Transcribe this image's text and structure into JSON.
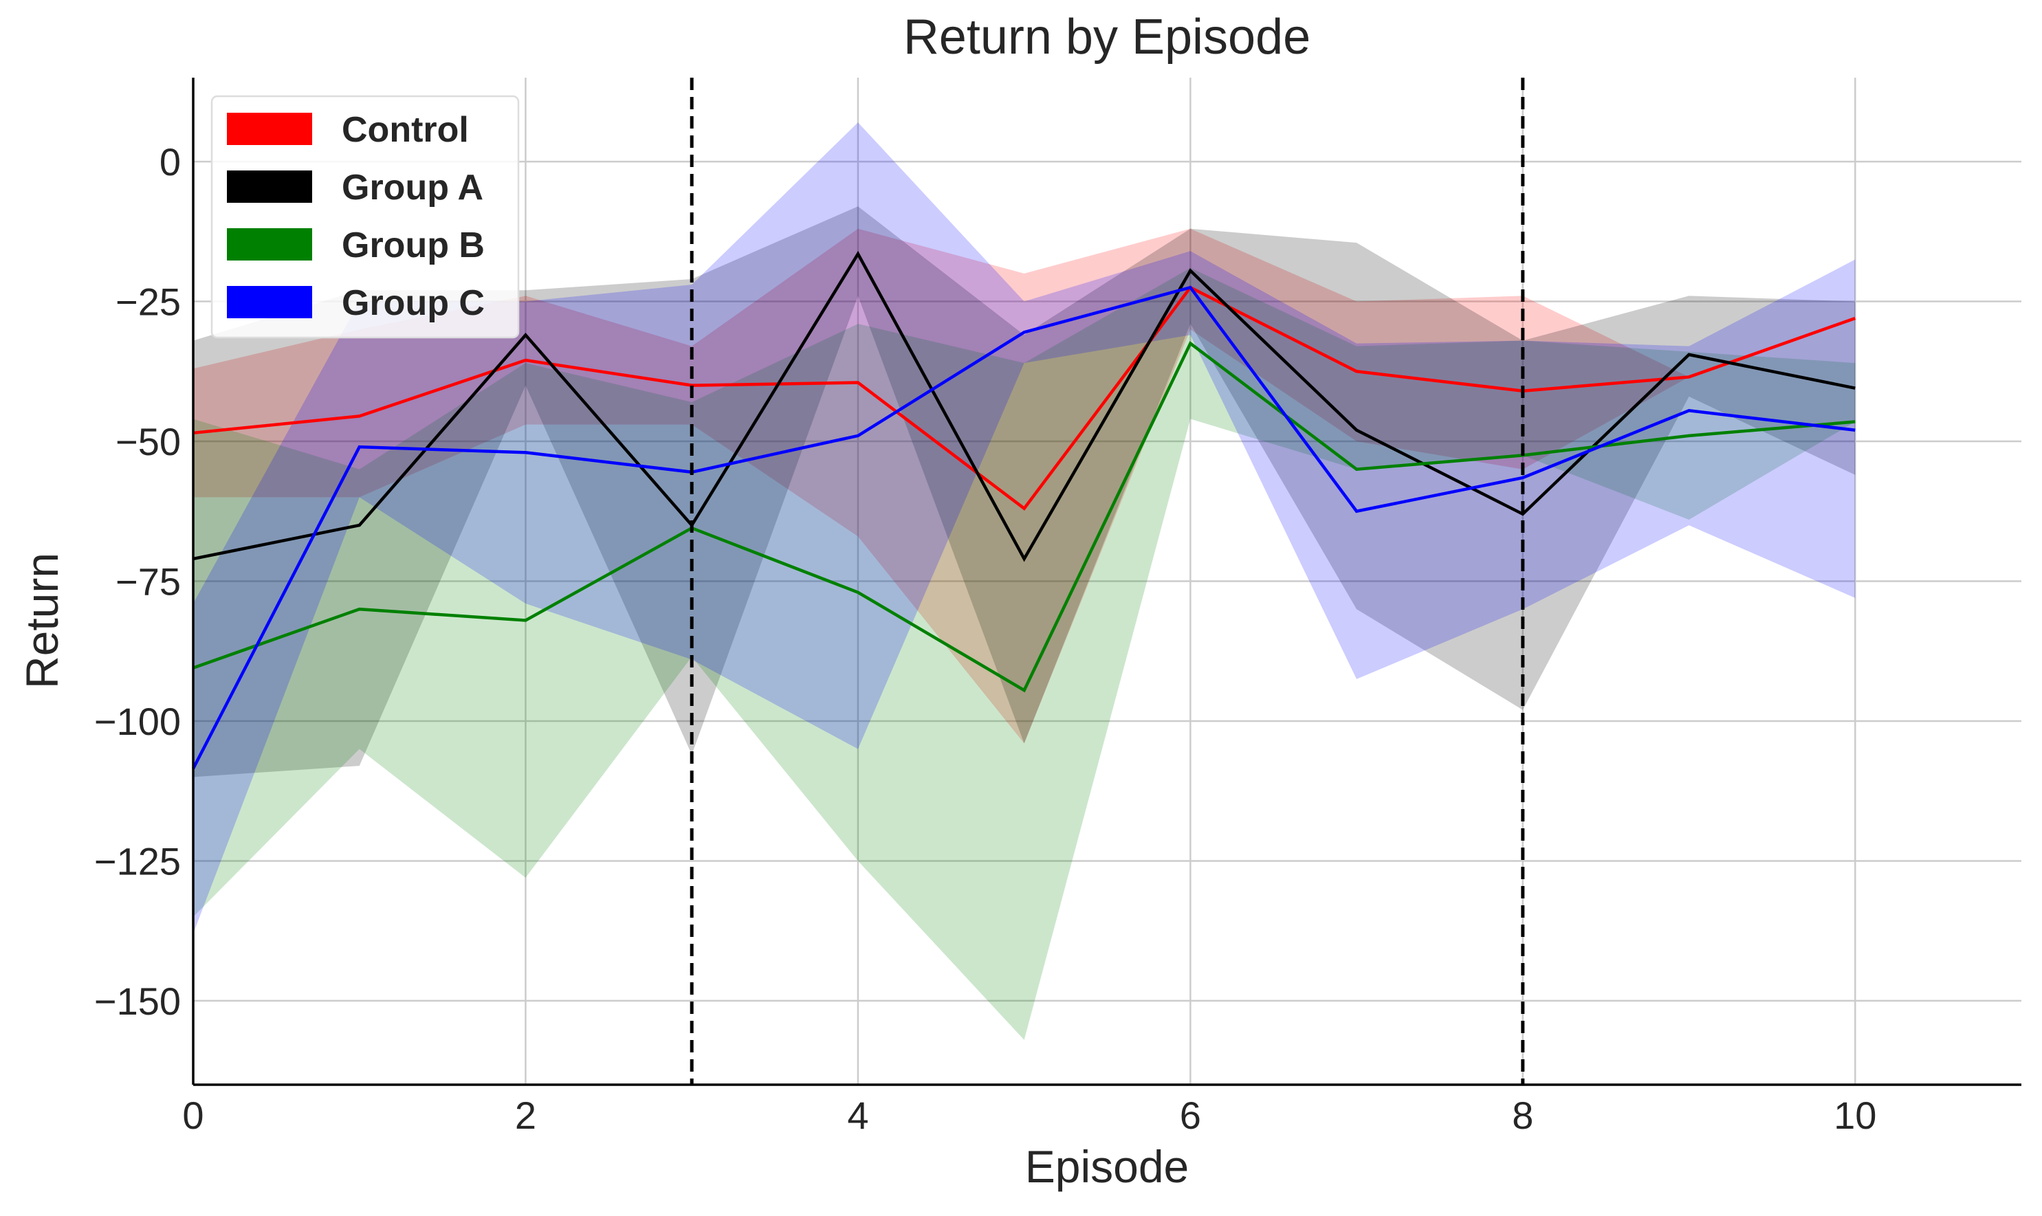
{
  "chart_data": {
    "type": "line",
    "title": "Return by Episode",
    "xlabel": "Episode",
    "ylabel": "Return",
    "xlim": [
      0,
      11
    ],
    "ylim": [
      -165,
      15
    ],
    "x_ticks": [
      0,
      2,
      4,
      6,
      8,
      10
    ],
    "y_ticks": [
      0,
      -25,
      -50,
      -75,
      -100,
      -125,
      -150
    ],
    "y_tick_labels": [
      "0",
      "−25",
      "−50",
      "−75",
      "−100",
      "−125",
      "−150"
    ],
    "grid": true,
    "legend_position": "top-left",
    "vlines": [
      3,
      8
    ],
    "x": [
      0,
      1,
      2,
      3,
      4,
      5,
      6,
      7,
      8,
      9,
      10
    ],
    "series": [
      {
        "name": "Control",
        "color": "#ff0000",
        "values": [
          -48.5,
          -45.5,
          -35.5,
          -40,
          -39.5,
          -62,
          -22.5,
          -37.5,
          -41,
          -38.5,
          -28
        ],
        "lower": [
          -60,
          -60,
          -47,
          -47,
          -67,
          -104,
          -30,
          -50,
          -55,
          -38.5,
          -28
        ],
        "upper": [
          -37,
          -30,
          -24,
          -33,
          -12,
          -20,
          -12,
          -25,
          -24,
          -38.5,
          -28
        ]
      },
      {
        "name": "Group A",
        "color": "#000000",
        "values": [
          -71,
          -65,
          -31,
          -65,
          -16.5,
          -71,
          -19.5,
          -48,
          -63,
          -34.5,
          -40.5
        ],
        "lower": [
          -110,
          -108,
          -40,
          -106,
          -24,
          -104,
          -29,
          -80,
          -98,
          -42,
          -56
        ],
        "upper": [
          -32,
          -23,
          -23,
          -21,
          -8,
          -31,
          -12,
          -14.5,
          -32,
          -24,
          -25
        ]
      },
      {
        "name": "Group B",
        "color": "#008000",
        "values": [
          -90.5,
          -80,
          -82,
          -65.5,
          -77,
          -94.5,
          -32.5,
          -55,
          -52.5,
          -49,
          -46.5
        ],
        "lower": [
          -135,
          -105,
          -128,
          -88.5,
          -125,
          -157,
          -46,
          -55,
          -52.5,
          -64,
          -46.5
        ],
        "upper": [
          -46,
          -55,
          -36,
          -43,
          -29,
          -36,
          -19,
          -33,
          -32,
          -34,
          -36
        ]
      },
      {
        "name": "Group C",
        "color": "#0000ff",
        "values": [
          -108.5,
          -51,
          -52,
          -55.5,
          -49,
          -30.5,
          -22.5,
          -62.5,
          -56.5,
          -44.5,
          -48
        ],
        "lower": [
          -138,
          -60,
          -79,
          -89,
          -105,
          -36,
          -31,
          -92.5,
          -80,
          -65,
          -78
        ],
        "upper": [
          -79,
          -25,
          -25,
          -22,
          7,
          -25,
          -16,
          -32.5,
          -32,
          -33,
          -17.5
        ]
      }
    ]
  }
}
